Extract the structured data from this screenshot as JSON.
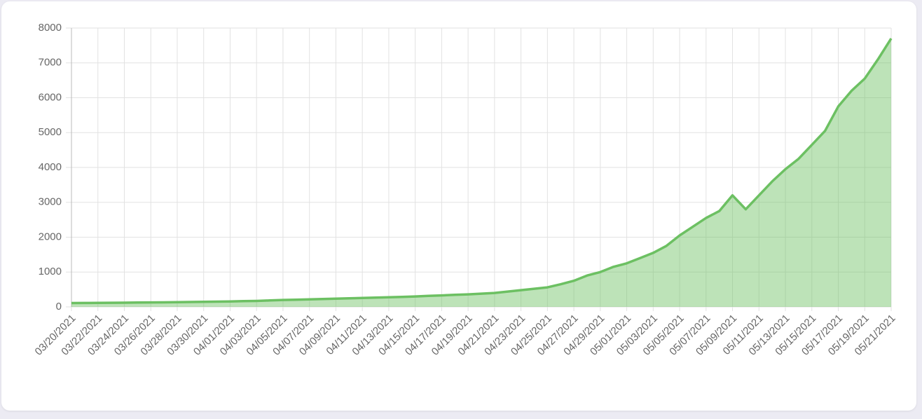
{
  "chart_data": {
    "type": "area",
    "categories": [
      "03/20/2021",
      null,
      "03/22/2021",
      null,
      "03/24/2021",
      null,
      "03/26/2021",
      null,
      "03/28/2021",
      null,
      "03/30/2021",
      null,
      "04/01/2021",
      null,
      "04/03/2021",
      null,
      "04/05/2021",
      null,
      "04/07/2021",
      null,
      "04/09/2021",
      null,
      "04/11/2021",
      null,
      "04/13/2021",
      null,
      "04/15/2021",
      null,
      "04/17/2021",
      null,
      "04/19/2021",
      null,
      "04/21/2021",
      null,
      "04/23/2021",
      null,
      "04/25/2021",
      null,
      "04/27/2021",
      null,
      "04/29/2021",
      null,
      "05/01/2021",
      null,
      "05/03/2021",
      null,
      "05/05/2021",
      null,
      "05/07/2021",
      null,
      "05/09/2021",
      null,
      "05/11/2021",
      null,
      "05/13/2021",
      null,
      "05/15/2021",
      null,
      "05/17/2021",
      null,
      "05/19/2021",
      null,
      "05/21/2021"
    ],
    "values": [
      110,
      112,
      115,
      118,
      120,
      125,
      128,
      130,
      135,
      140,
      145,
      150,
      155,
      165,
      170,
      185,
      200,
      205,
      215,
      225,
      235,
      245,
      255,
      265,
      275,
      285,
      300,
      315,
      330,
      345,
      360,
      380,
      400,
      440,
      480,
      520,
      560,
      650,
      750,
      900,
      1000,
      1150,
      1250,
      1400,
      1550,
      1750,
      2050,
      2300,
      2550,
      2750,
      3200,
      2800,
      3200,
      3600,
      3950,
      4250,
      4650,
      5050,
      5750,
      6200,
      6550,
      7100,
      7700
    ],
    "color": "#6cc062",
    "ylim": [
      0,
      8000
    ],
    "yticks": [
      0,
      1000,
      2000,
      3000,
      4000,
      5000,
      6000,
      7000,
      8000
    ],
    "grid": true
  }
}
